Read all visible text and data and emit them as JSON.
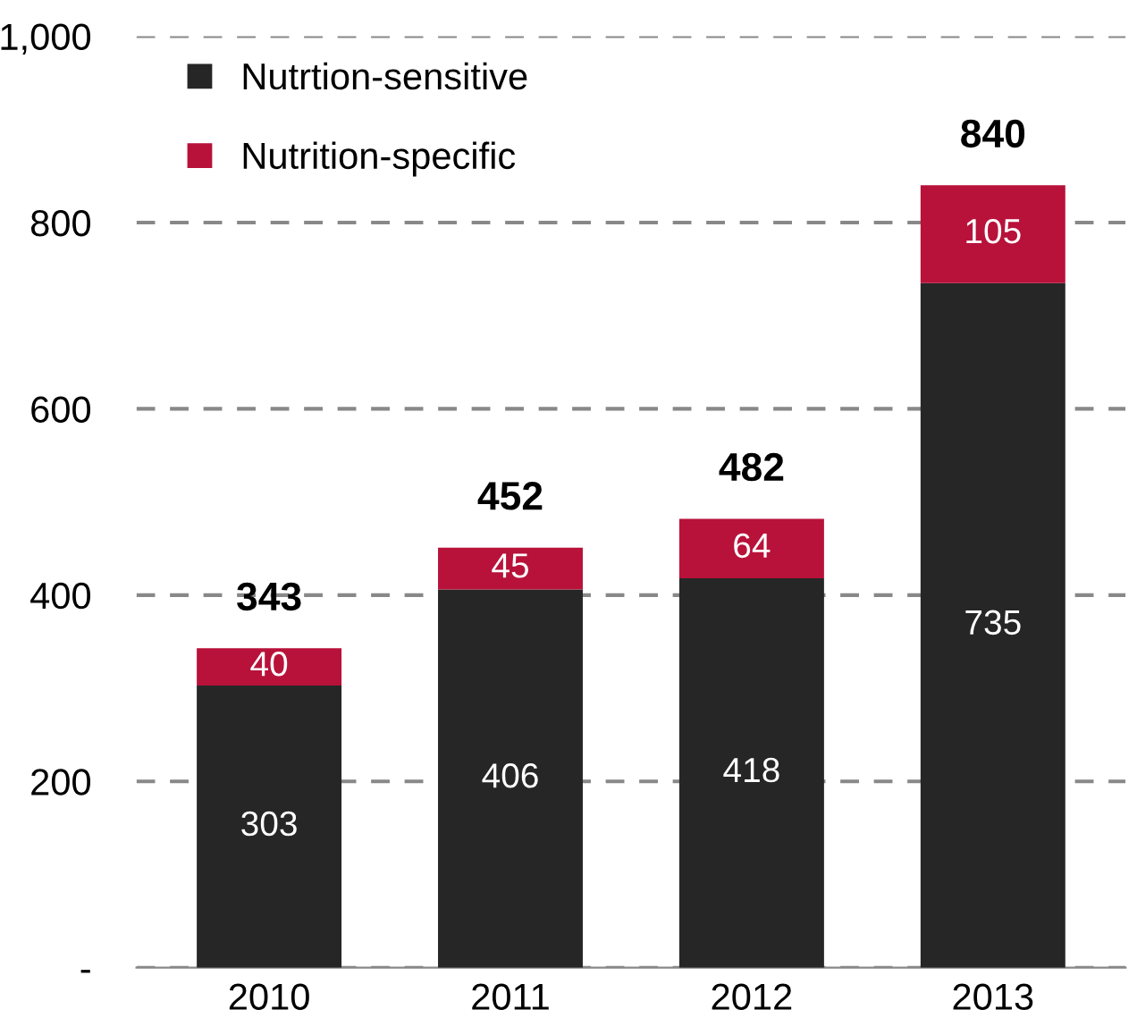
{
  "chart_data": {
    "type": "bar",
    "stacked": true,
    "categories": [
      "2010",
      "2011",
      "2012",
      "2013"
    ],
    "series": [
      {
        "name": "Nutrtion-sensitive",
        "color": "#262626",
        "values": [
          303,
          406,
          418,
          735
        ]
      },
      {
        "name": "Nutrition-specific",
        "color": "#b8123a",
        "values": [
          40,
          45,
          64,
          105
        ]
      }
    ],
    "ylim": [
      0,
      1000
    ],
    "yticks": [
      {
        "value": 0,
        "label": "-"
      },
      200,
      400,
      600,
      800,
      {
        "value": 1000,
        "label": "1,000"
      }
    ],
    "grid": "y",
    "legend": "top left",
    "data_labels": true,
    "totals": [
      "343",
      "452",
      "482",
      "840"
    ]
  }
}
